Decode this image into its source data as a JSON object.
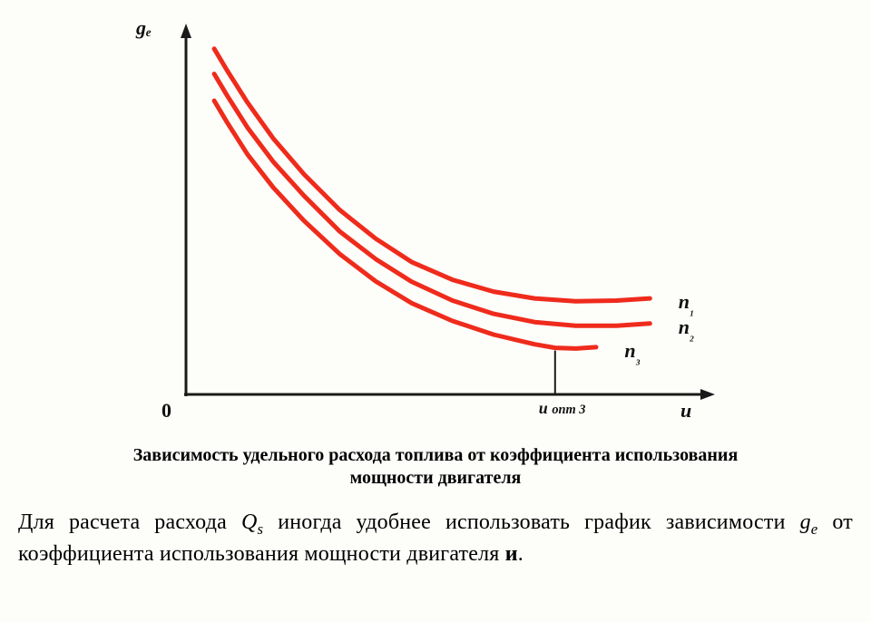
{
  "chart": {
    "type": "line-scan-figure",
    "background_color": "#fdfdfa",
    "axis_color": "#1a1a1a",
    "axis_stroke_width": 3,
    "arrowhead_size": 10,
    "origin_label": "0",
    "y_axis_label": "gₑ",
    "x_axis_label": "и",
    "x_tick_label": "и опт 3",
    "x_tick_position": 0.72,
    "label_fontsize": 22,
    "tick_fontsize": 18,
    "xlim": [
      0,
      1
    ],
    "ylim": [
      0,
      1
    ],
    "curves": [
      {
        "name": "n1",
        "label": "n₁",
        "label_pos": {
          "x": 0.95,
          "y": 0.255
        },
        "color": "#ef2b1c",
        "stroke_width": 5,
        "points": [
          {
            "x": 0.055,
            "y": 0.965
          },
          {
            "x": 0.08,
            "y": 0.905
          },
          {
            "x": 0.12,
            "y": 0.815
          },
          {
            "x": 0.17,
            "y": 0.715
          },
          {
            "x": 0.23,
            "y": 0.615
          },
          {
            "x": 0.3,
            "y": 0.515
          },
          {
            "x": 0.37,
            "y": 0.435
          },
          {
            "x": 0.44,
            "y": 0.37
          },
          {
            "x": 0.52,
            "y": 0.32
          },
          {
            "x": 0.6,
            "y": 0.287
          },
          {
            "x": 0.68,
            "y": 0.268
          },
          {
            "x": 0.76,
            "y": 0.26
          },
          {
            "x": 0.84,
            "y": 0.262
          },
          {
            "x": 0.905,
            "y": 0.268
          }
        ]
      },
      {
        "name": "n2",
        "label": "n₂",
        "label_pos": {
          "x": 0.95,
          "y": 0.185
        },
        "color": "#ef2b1c",
        "stroke_width": 5,
        "points": [
          {
            "x": 0.055,
            "y": 0.895
          },
          {
            "x": 0.08,
            "y": 0.835
          },
          {
            "x": 0.12,
            "y": 0.745
          },
          {
            "x": 0.17,
            "y": 0.65
          },
          {
            "x": 0.23,
            "y": 0.555
          },
          {
            "x": 0.3,
            "y": 0.455
          },
          {
            "x": 0.37,
            "y": 0.378
          },
          {
            "x": 0.44,
            "y": 0.315
          },
          {
            "x": 0.52,
            "y": 0.262
          },
          {
            "x": 0.6,
            "y": 0.225
          },
          {
            "x": 0.68,
            "y": 0.202
          },
          {
            "x": 0.76,
            "y": 0.192
          },
          {
            "x": 0.84,
            "y": 0.192
          },
          {
            "x": 0.905,
            "y": 0.198
          }
        ]
      },
      {
        "name": "n3",
        "label": "n₃",
        "label_pos": {
          "x": 0.845,
          "y": 0.12
        },
        "color": "#ef2b1c",
        "stroke_width": 5,
        "points": [
          {
            "x": 0.055,
            "y": 0.82
          },
          {
            "x": 0.08,
            "y": 0.76
          },
          {
            "x": 0.12,
            "y": 0.67
          },
          {
            "x": 0.17,
            "y": 0.578
          },
          {
            "x": 0.23,
            "y": 0.485
          },
          {
            "x": 0.3,
            "y": 0.392
          },
          {
            "x": 0.37,
            "y": 0.316
          },
          {
            "x": 0.44,
            "y": 0.255
          },
          {
            "x": 0.52,
            "y": 0.205
          },
          {
            "x": 0.6,
            "y": 0.167
          },
          {
            "x": 0.68,
            "y": 0.14
          },
          {
            "x": 0.72,
            "y": 0.13
          },
          {
            "x": 0.76,
            "y": 0.128
          },
          {
            "x": 0.8,
            "y": 0.132
          }
        ]
      }
    ],
    "drop_line": {
      "from_curve": "n3",
      "x": 0.72,
      "stroke_width": 2,
      "color": "#1a1a1a"
    }
  },
  "caption": {
    "text_line1": "Зависимость удельного расхода топлива от коэффициента использования",
    "text_line2": "мощности двигателя",
    "fontsize": 20,
    "font_weight": "bold",
    "color": "#000000"
  },
  "body": {
    "fontsize": 24,
    "color": "#000000",
    "prefix": "Для расчета расхода ",
    "Q": "Q",
    "Q_sub": "s",
    "mid1": " иногда удобнее использовать график зависимости ",
    "g": "g",
    "g_sub": "e",
    "mid2": " от коэффициента использования мощности двигателя ",
    "i": "и",
    "suffix": "."
  }
}
